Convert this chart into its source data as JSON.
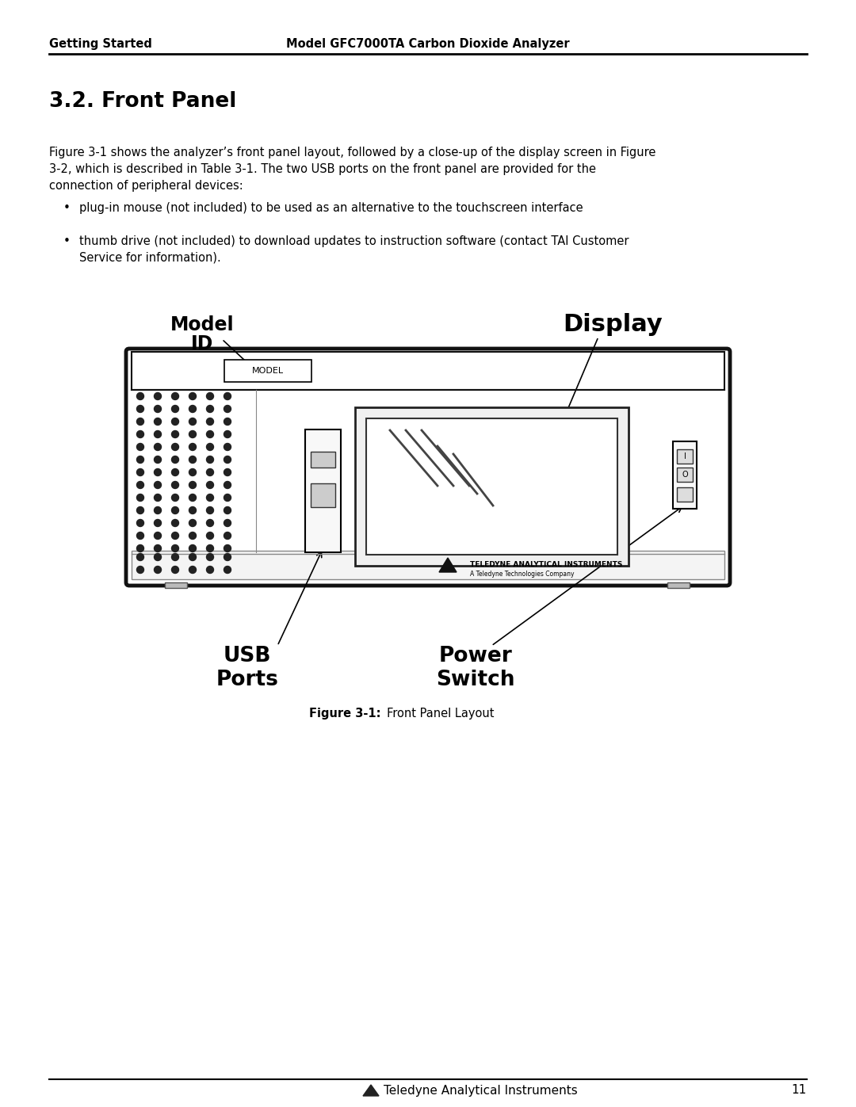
{
  "page_title_left": "Getting Started",
  "page_title_right": "Model GFC7000TA Carbon Dioxide Analyzer",
  "section_title": "3.2. Front Panel",
  "body_line1": "Figure 3-1 shows the analyzer’s front panel layout, followed by a close-up of the display screen in Figure",
  "body_line2": "3-2, which is described in Table 3-1. The two USB ports on the front panel are provided for the",
  "body_line3": "connection of peripheral devices:",
  "bullet1": "plug-in mouse (not included) to be used as an alternative to the touchscreen interface",
  "bullet2a": "thumb drive (not included) to download updates to instruction software (contact TAI Customer",
  "bullet2b": "Service for information).",
  "label_model": "Model",
  "label_id": "ID",
  "label_display": "Display",
  "label_usb": "USB\nPorts",
  "label_power": "Power\nSwitch",
  "model_box_text": "MODEL",
  "tai_line1": "TELEDYNE ANALYTICAL INSTRUMENTS",
  "tai_line2": "A Teledyne Technologies Company",
  "figure_caption_bold": "Figure 3-1:",
  "figure_caption_rest": "     Front Panel Layout",
  "footer_text": "Teledyne Analytical Instruments",
  "footer_page": "11",
  "bg_color": "#ffffff",
  "text_color": "#000000",
  "panel_face": "#ffffff",
  "panel_edge": "#000000",
  "dot_color": "#222222",
  "strip_face": "#ffffff"
}
